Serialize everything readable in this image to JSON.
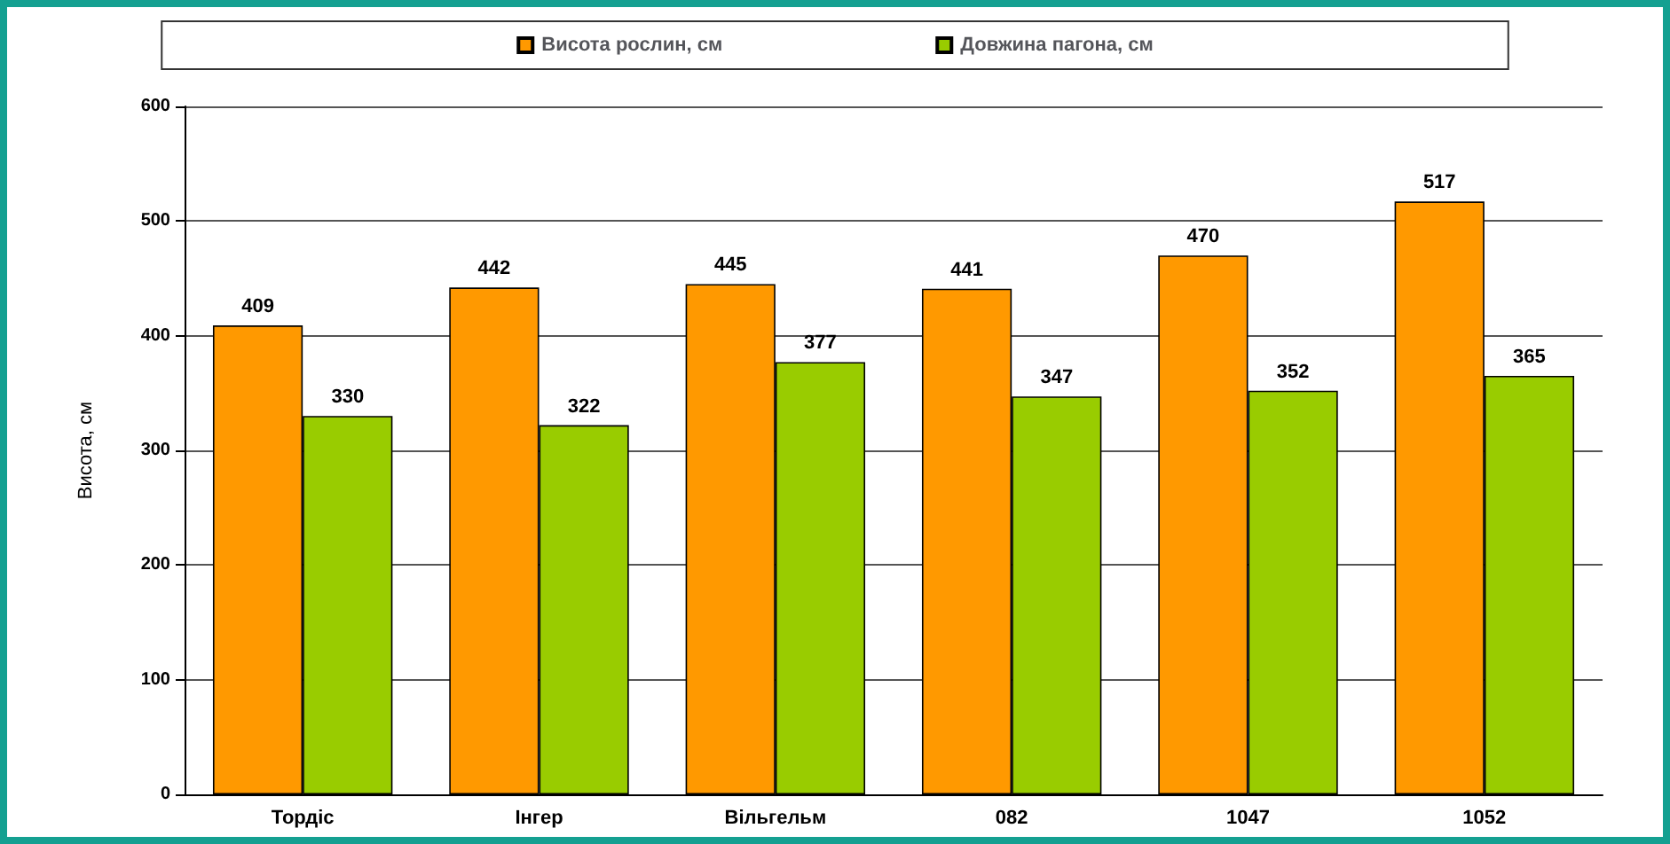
{
  "chart_data": {
    "type": "bar",
    "ylabel": "Висота, см",
    "categories": [
      "Тордіс",
      "Інгер",
      "Вільгельм",
      "082",
      "1047",
      "1052"
    ],
    "series": [
      {
        "name": "Висота рослин, см",
        "color": "#ff9900",
        "values": [
          409,
          442,
          445,
          441,
          470,
          517
        ]
      },
      {
        "name": "Довжина пагона, см",
        "color": "#99cc00",
        "values": [
          330,
          322,
          377,
          347,
          352,
          365
        ]
      }
    ],
    "ylim": [
      0,
      600
    ],
    "yticks": [
      0,
      100,
      200,
      300,
      400,
      500,
      600
    ],
    "grid": "y",
    "legend": "top",
    "data_labels": true
  }
}
